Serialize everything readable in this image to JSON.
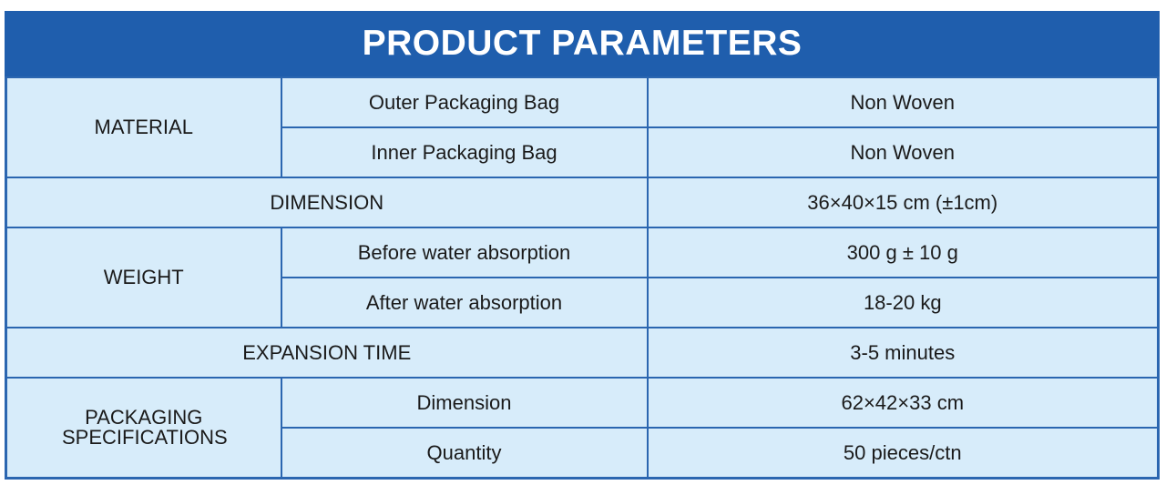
{
  "title": "PRODUCT PARAMETERS",
  "rows": {
    "material": {
      "label": "MATERIAL",
      "items": [
        {
          "name": "Outer Packaging Bag",
          "value": "Non Woven"
        },
        {
          "name": "Inner Packaging Bag",
          "value": "Non Woven"
        }
      ]
    },
    "dimension": {
      "label": "DIMENSION",
      "value": "36×40×15 cm (±1cm)"
    },
    "weight": {
      "label": "WEIGHT",
      "items": [
        {
          "name": "Before water absorption",
          "value": "300 g ± 10 g"
        },
        {
          "name": "After water absorption",
          "value": "18-20 kg"
        }
      ]
    },
    "expansion": {
      "label": "EXPANSION TIME",
      "value": "3-5 minutes"
    },
    "packaging": {
      "label": "PACKAGING SPECIFICATIONS",
      "items": [
        {
          "name": "Dimension",
          "value": "62×42×33 cm"
        },
        {
          "name": "Quantity",
          "value": "50 pieces/ctn"
        }
      ]
    }
  },
  "colors": {
    "header": "#1f5ead",
    "cell": "#d7ecfa",
    "border": "#2b66b0"
  }
}
